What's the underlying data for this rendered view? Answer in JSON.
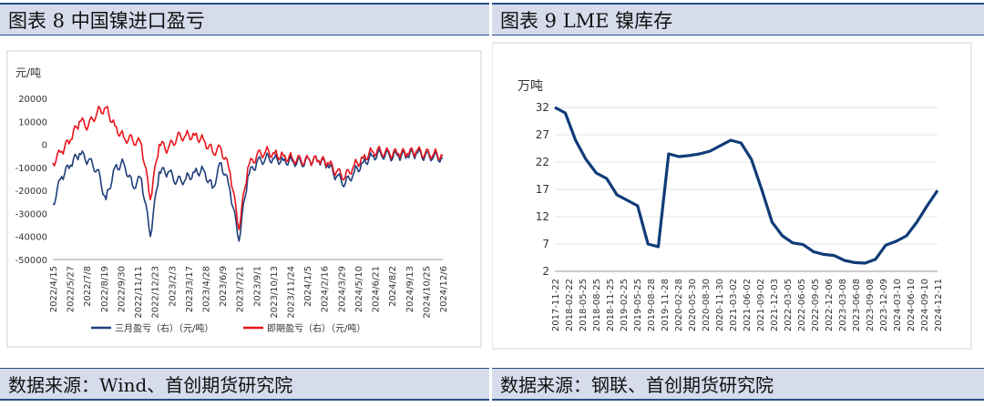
{
  "left_panel": {
    "title": "图表 8 中国镍进口盈亏",
    "source": "数据来源：Wind、首创期货研究院"
  },
  "right_panel": {
    "title": "图表 9 LME 镍库存",
    "source": "数据来源：钢联、首创期货研究院"
  },
  "chart_data": [
    {
      "type": "line",
      "title": "",
      "ylabel": "元/吨",
      "ylim": [
        -50000,
        20000
      ],
      "yticks": [
        20000,
        10000,
        0,
        -10000,
        -20000,
        -30000,
        -40000,
        -50000
      ],
      "ytick_color": "#c00000",
      "xticks": [
        "2022/4/15",
        "2022/5/27",
        "2022/7/8",
        "2022/8/19",
        "2022/9/30",
        "2022/11/11",
        "2022/12/23",
        "2023/2/3",
        "2023/3/17",
        "2023/4/28",
        "2023/6/9",
        "2023/7/21",
        "2023/9/1",
        "2023/10/13",
        "2023/11/24",
        "2024/1/5",
        "2024/2/16",
        "2024/3/29",
        "2024/5/10",
        "2024/6/21",
        "2024/8/2",
        "2024/9/13",
        "2024/10/25",
        "2024/12/6"
      ],
      "series": [
        {
          "name": "三月盈亏（右）（元/吨）",
          "color": "#1f3f7a",
          "values": [
            -26000,
            -14000,
            -9000,
            -4000,
            -7000,
            -11000,
            -24000,
            -10000,
            -8000,
            -18000,
            -15000,
            -40000,
            -12000,
            -12000,
            -16000,
            -15000,
            -12000,
            -11000,
            -19000,
            -8000,
            -20000,
            -42000,
            -14000,
            -8000,
            -6000,
            -6000,
            -7000,
            -7000,
            -8000,
            -7000,
            -7000,
            -9000,
            -14000,
            -17000,
            -12000,
            -8000,
            -5000,
            -4000,
            -5000,
            -5000,
            -5000,
            -4000,
            -5000,
            -5000,
            -6000
          ]
        },
        {
          "name": "即期盈亏（右）（元/吨）",
          "color": "#e8141c",
          "values": [
            -8000,
            -3000,
            2000,
            10000,
            8000,
            14000,
            16000,
            8000,
            3000,
            2000,
            0,
            -24000,
            0,
            -2000,
            3000,
            4000,
            4000,
            2000,
            -3000,
            -2000,
            -12000,
            -37000,
            -10000,
            -5000,
            -3000,
            -4000,
            -5000,
            -6000,
            -7000,
            -7000,
            -7000,
            -8000,
            -12000,
            -14000,
            -9000,
            -6000,
            -3000,
            -3000,
            -4000,
            -4000,
            -4000,
            -3000,
            -4000,
            -4000,
            -5000
          ]
        }
      ],
      "legend_position": "bottom"
    },
    {
      "type": "line",
      "title": "",
      "ylabel": "万吨",
      "ylim": [
        2,
        32
      ],
      "yticks": [
        32,
        27,
        22,
        17,
        12,
        7,
        2
      ],
      "xticks": [
        "2017-11-22",
        "2018-02-22",
        "2018-05-25",
        "2018-08-25",
        "2018-11-25",
        "2019-02-25",
        "2019-05-25",
        "2019-08-28",
        "2019-11-28",
        "2020-02-28",
        "2020-05-30",
        "2020-08-30",
        "2020-11-30",
        "2021-03-02",
        "2021-06-02",
        "2021-09-02",
        "2021-12-03",
        "2022-03-05",
        "2022-06-05",
        "2022-09-05",
        "2022-12-06",
        "2023-03-08",
        "2023-06-08",
        "2023-09-08",
        "2023-12-09",
        "2024-03-10",
        "2024-06-10",
        "2024-09-10",
        "2024-12-11"
      ],
      "series": [
        {
          "name": "",
          "color": "#0f3c78",
          "values": [
            32.0,
            31.0,
            26.0,
            22.5,
            20.0,
            19.0,
            16.0,
            15.0,
            14.0,
            7.0,
            6.5,
            23.5,
            23.0,
            23.2,
            23.5,
            24.0,
            25.0,
            26.0,
            25.5,
            22.5,
            17.0,
            11.0,
            8.5,
            7.2,
            6.9,
            5.6,
            5.1,
            4.9,
            4.0,
            3.6,
            3.5,
            4.2,
            6.8,
            7.5,
            8.5,
            11.0,
            14.0,
            16.8
          ]
        }
      ],
      "legend_position": "none"
    }
  ]
}
